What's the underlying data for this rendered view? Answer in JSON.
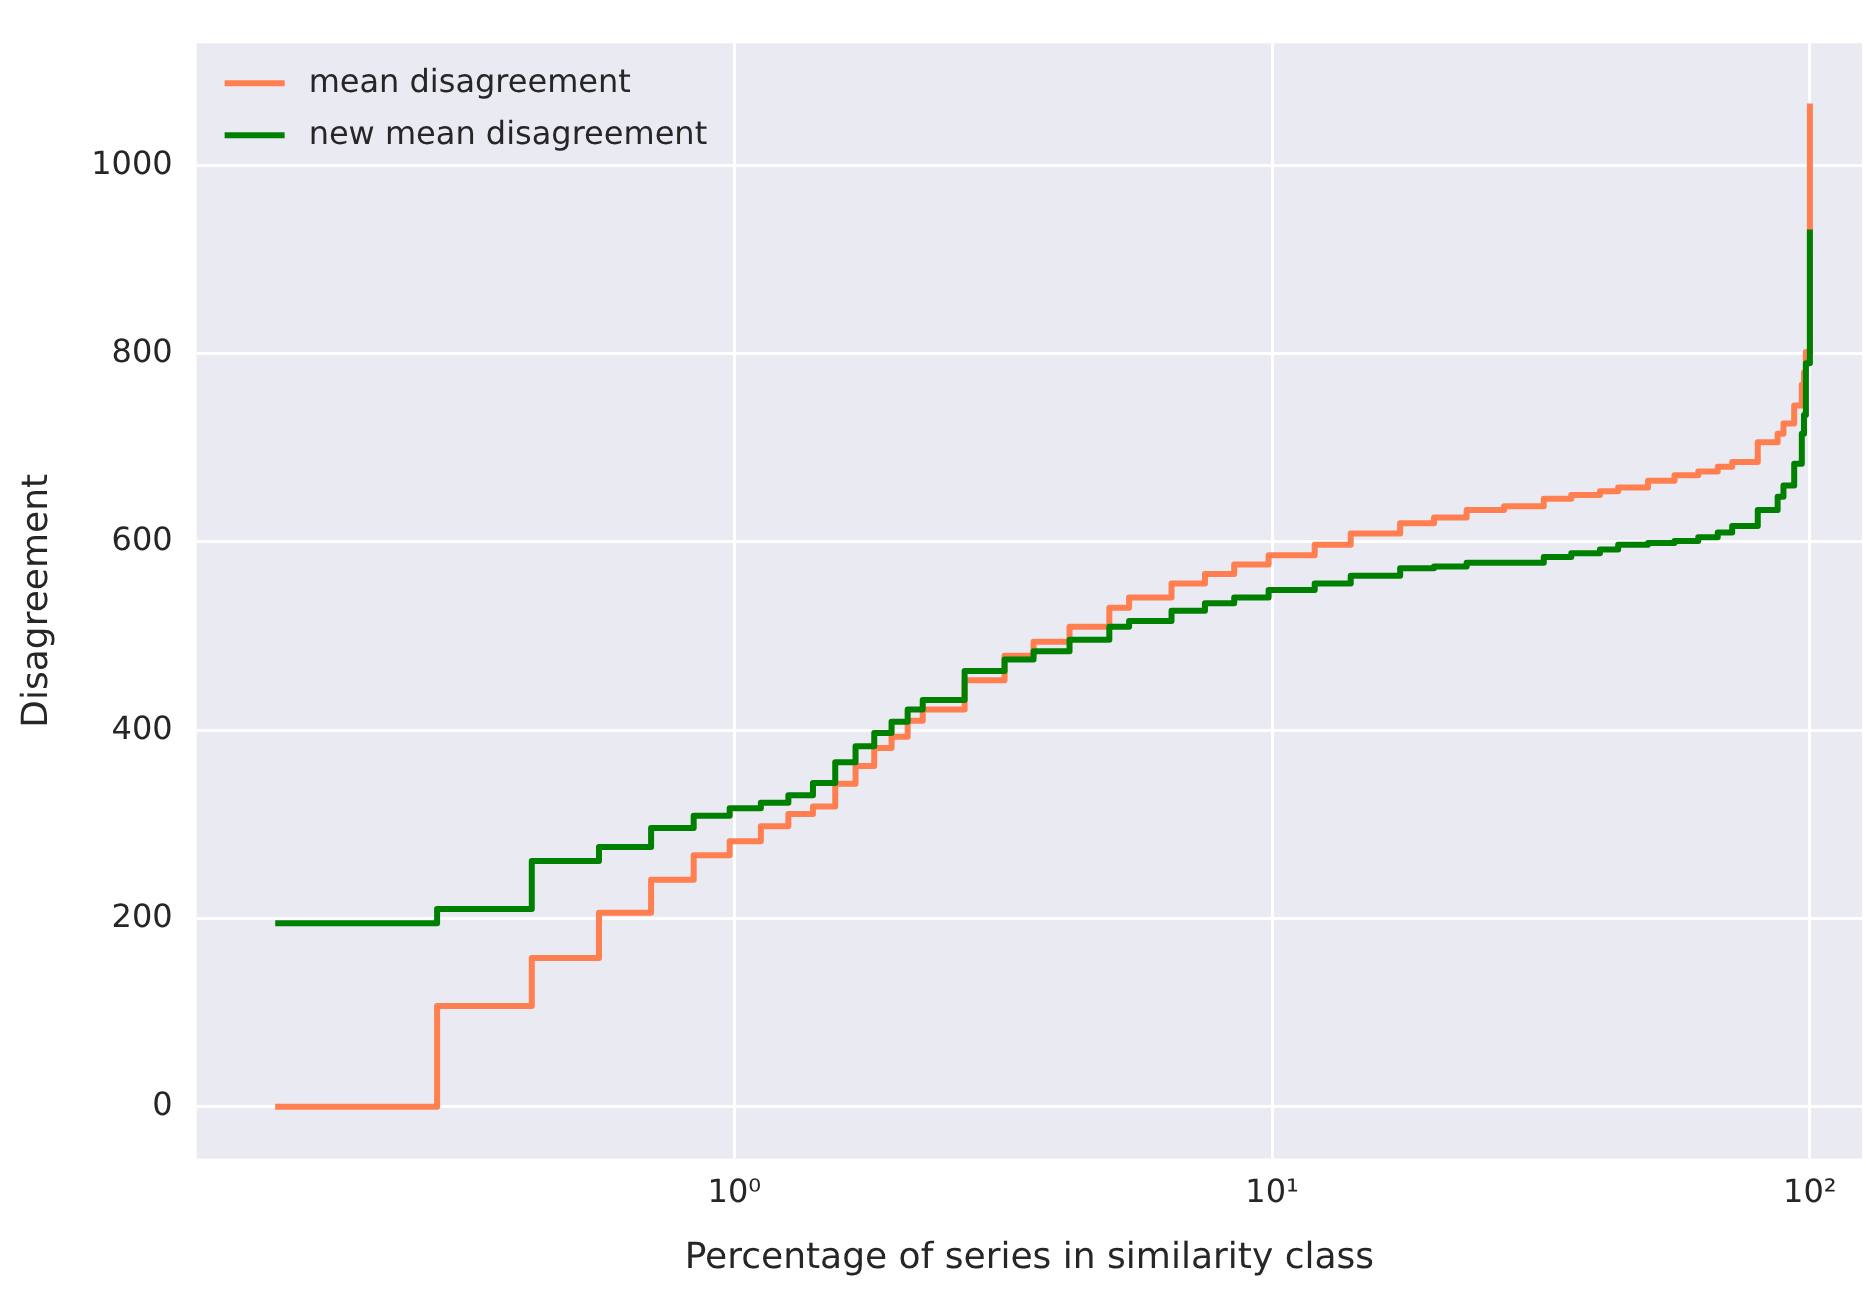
{
  "chart_data": {
    "type": "step",
    "xlabel": "Percentage of series in similarity class",
    "ylabel": "Disagreement",
    "x": [
      0.14,
      0.28,
      0.42,
      0.56,
      0.7,
      0.84,
      0.98,
      1.12,
      1.26,
      1.4,
      1.54,
      1.68,
      1.82,
      1.96,
      2.1,
      2.24,
      2.68,
      3.18,
      3.6,
      4.2,
      4.98,
      5.42,
      6.5,
      7.5,
      8.5,
      9.85,
      12,
      14,
      17.3,
      20,
      23.0,
      27,
      32,
      36,
      40.7,
      44,
      50,
      56,
      62,
      67.4,
      71.7,
      80,
      87.1,
      89.3,
      93.5,
      96.6,
      97.5,
      98.3,
      100
    ],
    "series": [
      {
        "name": "mean disagreement",
        "color": "#ff7f50",
        "values": [
          0,
          107,
          158,
          206,
          241,
          267,
          282,
          298,
          311,
          319,
          343,
          362,
          381,
          393,
          410,
          422,
          453,
          479,
          494,
          510,
          530,
          541,
          556,
          566,
          576,
          586,
          597,
          609,
          620,
          626,
          634,
          638,
          646,
          650,
          654,
          658,
          665,
          671,
          675,
          680,
          685,
          706,
          715,
          726,
          745,
          767,
          780,
          802,
          1066
        ]
      },
      {
        "name": "new mean disagreement",
        "color": "#008000",
        "values": [
          195,
          210,
          261,
          276,
          296,
          309,
          317,
          323,
          331,
          344,
          366,
          383,
          397,
          409,
          422,
          432,
          463,
          475,
          484,
          496,
          510,
          516,
          527,
          535,
          541,
          549,
          556,
          564,
          572,
          574,
          578,
          578,
          584,
          588,
          592,
          597,
          599,
          601,
          605,
          610,
          617,
          634,
          648,
          660,
          683,
          715,
          735,
          790,
          932
        ]
      }
    ],
    "log": "x",
    "xlim": [
      0.1,
      125
    ],
    "xticks": [
      {
        "value": 1,
        "label": "10⁰"
      },
      {
        "value": 10,
        "label": "10¹"
      },
      {
        "value": 100,
        "label": "10²"
      }
    ],
    "ylim": [
      -55,
      1130
    ],
    "yticks": [
      0,
      200,
      400,
      600,
      800,
      1000
    ],
    "grid": true,
    "legend": "top left"
  }
}
